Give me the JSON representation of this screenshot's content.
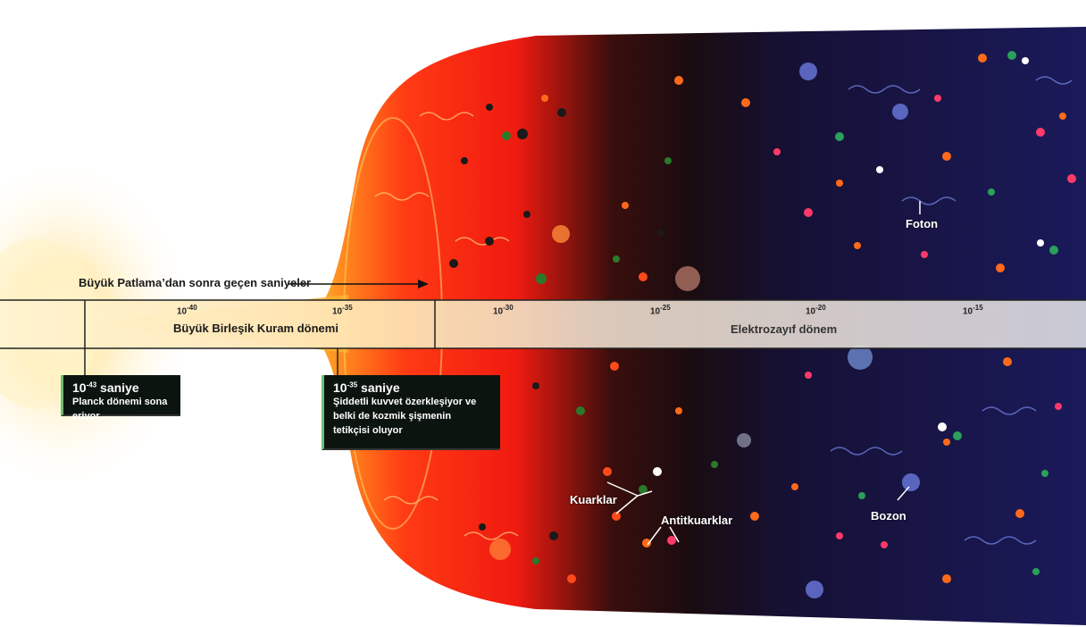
{
  "axis": {
    "caption": "Büyük Patlama’dan sonra geçen saniyeler",
    "ticks": [
      {
        "base": "10",
        "exp": "-40"
      },
      {
        "base": "10",
        "exp": "-35"
      },
      {
        "base": "10",
        "exp": "-30"
      },
      {
        "base": "10",
        "exp": "-25"
      },
      {
        "base": "10",
        "exp": "-20"
      },
      {
        "base": "10",
        "exp": "-15"
      }
    ]
  },
  "eras": {
    "gut": "Büyük Birleşik Kuram dönemi",
    "electroweak": "Elektrozayıf dönem"
  },
  "events": {
    "planck": {
      "time_base": "10",
      "time_exp": "-43",
      "unit": "saniye",
      "desc": "Planck dönemi sona eriyor"
    },
    "inflation": {
      "time_base": "10",
      "time_exp": "-35",
      "unit": "saniye",
      "desc_1": "Şiddetli kuvvet özerkleşiyor ve",
      "desc_2": "belki de kozmik şişmenin",
      "desc_3": "tetikçisi oluyor"
    }
  },
  "particles": {
    "foton": "Foton",
    "kuarklar": "Kuarklar",
    "antikuarklar": "Antitkuarklar",
    "bozon": "Bozon"
  },
  "colors": {
    "hot": "#ff2a14",
    "mid": "#1a0c10",
    "cool": "#141448",
    "band": "#e6e0d8"
  }
}
